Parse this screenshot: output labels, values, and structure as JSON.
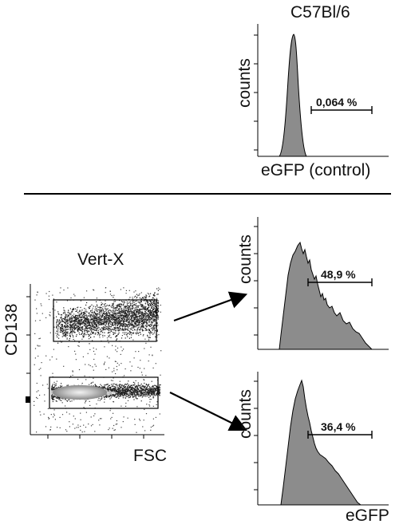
{
  "control": {
    "title": "C57Bl/6",
    "y_label": "counts",
    "x_label": "eGFP (control)",
    "gate_percent": "0,064 %"
  },
  "dotplot": {
    "title": "Vert-X",
    "y_label": "CD138",
    "x_label": "FSC"
  },
  "upper_histogram": {
    "y_label": "counts",
    "gate_percent": "48,9 %"
  },
  "lower_histogram": {
    "y_label": "counts",
    "gate_percent": "36,4 %",
    "x_label": "eGFP"
  },
  "colors": {
    "histogram_fill": "#8c8c8c",
    "line": "#000000",
    "dot_light": "#cfcfcf",
    "dot_dark": "#1a1a1a"
  }
}
